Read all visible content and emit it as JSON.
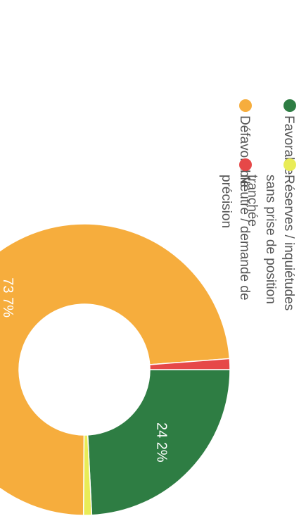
{
  "chart_data": {
    "type": "pie",
    "categories": [
      "Favorable",
      "Réserves / inquiétudes sans prise de position tranchée",
      "Défavorable",
      "Neutre / demande de précision"
    ],
    "values": [
      24.2,
      0.9,
      73.7,
      1.2
    ],
    "data_labels": [
      "24 2%",
      "",
      "73 7%",
      ""
    ],
    "colors": [
      "#2e7d43",
      "#e9ec57",
      "#f6ad3d",
      "#e64848"
    ],
    "legend": {
      "position": "right",
      "entries": [
        {
          "label_lines": [
            "Favorable"
          ],
          "color": "#2e7d43"
        },
        {
          "label_lines": [
            "Réserves / inquiétudes",
            "sans prise de position",
            "tranchée"
          ],
          "color": "#e9ec57"
        },
        {
          "label_lines": [
            "Défavorable"
          ],
          "color": "#f6ad3d"
        },
        {
          "label_lines": [
            "Neutre / demande de",
            "précision"
          ],
          "color": "#e64848"
        }
      ]
    },
    "donut": true,
    "orientation": "rotated-90-clockwise"
  }
}
